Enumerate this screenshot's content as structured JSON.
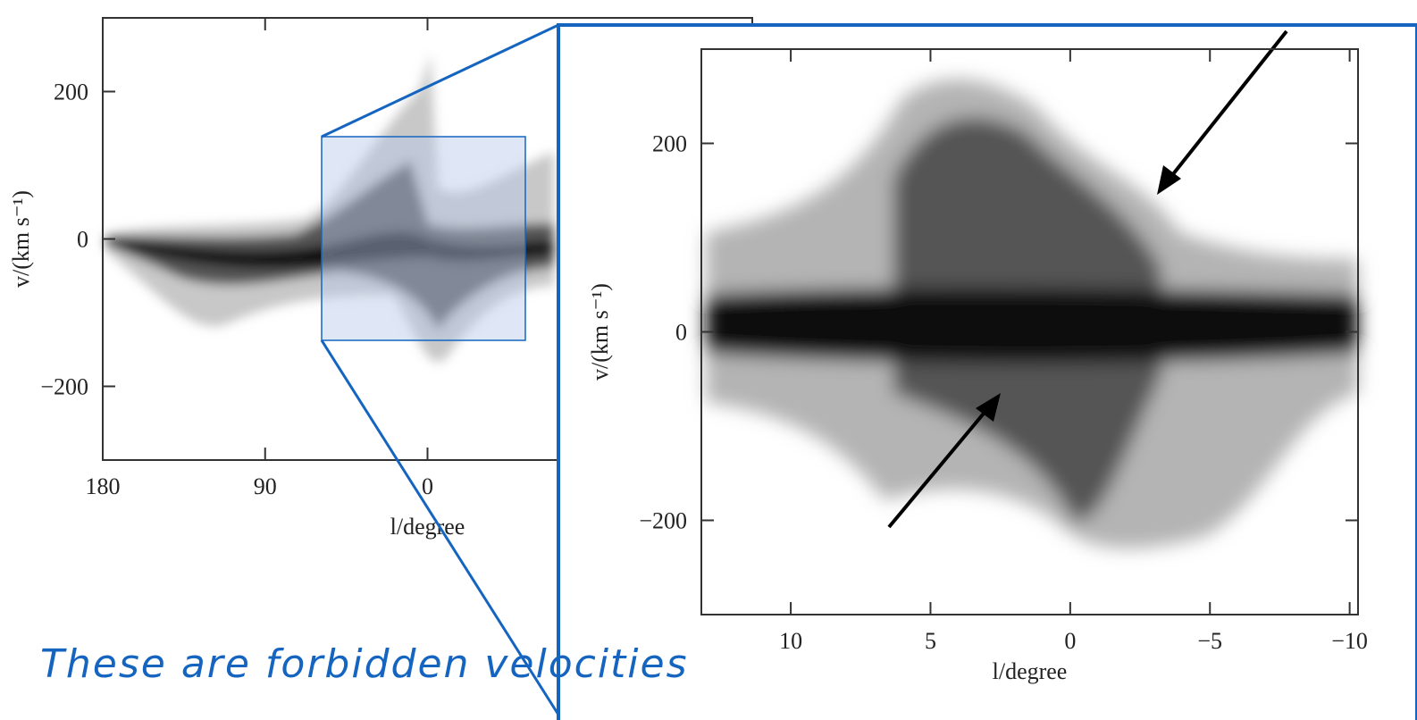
{
  "charts": [
    {
      "type": "density",
      "xlabel": "l/degree",
      "ylabel": "v/(km s⁻¹)",
      "xlim": [
        180,
        -180
      ],
      "xticks": [
        180,
        90,
        0
      ],
      "ylim": [
        -300,
        300
      ],
      "yticks": [
        {
          "value": 200,
          "label": "200"
        },
        {
          "value": 0,
          "label": "0"
        },
        {
          "value": -200,
          "label": "−200"
        }
      ]
    },
    {
      "type": "density",
      "xlabel": "l/degree",
      "ylabel": "v/(km s⁻¹)",
      "xlim": [
        13.2,
        -10.3
      ],
      "xticks": [
        10,
        5,
        0,
        {
          "value": -5,
          "label": "−5"
        },
        {
          "value": -10,
          "label": "−10"
        }
      ],
      "ylim": [
        -300,
        300
      ],
      "yticks": [
        {
          "value": 200,
          "label": "200"
        },
        {
          "value": 0,
          "label": "0"
        },
        {
          "value": -200,
          "label": "−200"
        }
      ]
    }
  ],
  "annotation": "These are forbidden velocities"
}
